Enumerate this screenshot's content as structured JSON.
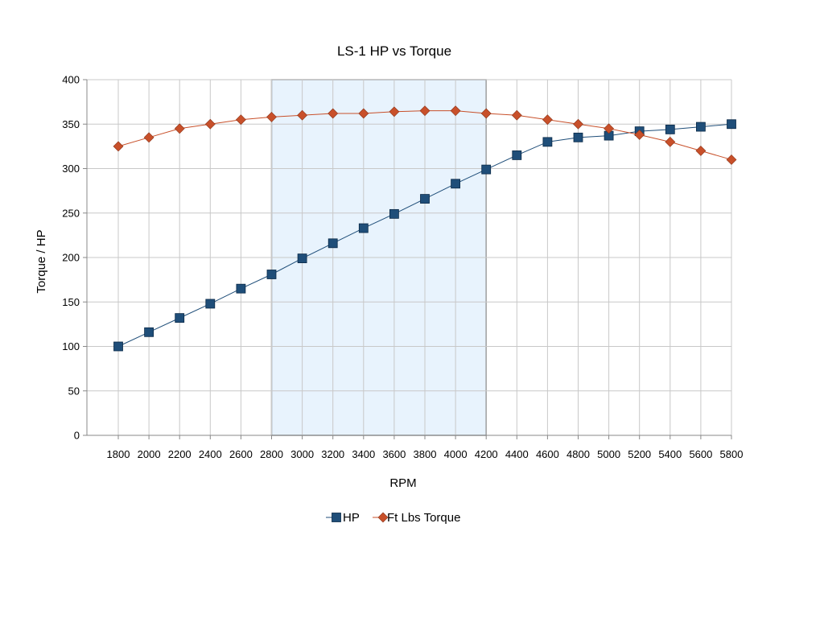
{
  "chart_data": {
    "type": "line",
    "title": "LS-1 HP vs Torque",
    "xlabel": "RPM",
    "ylabel": "Torque / HP",
    "categories": [
      "1800",
      "2000",
      "2200",
      "2400",
      "2600",
      "2800",
      "3000",
      "3200",
      "3400",
      "3600",
      "3800",
      "4000",
      "4200",
      "4400",
      "4600",
      "4800",
      "5000",
      "5200",
      "5400",
      "5600",
      "5800"
    ],
    "ylim": [
      0,
      400
    ],
    "yticks": [
      "0",
      "50",
      "100",
      "150",
      "200",
      "250",
      "300",
      "350",
      "400"
    ],
    "grid": true,
    "legend_position": "bottom",
    "highlight_band": {
      "from": "2800",
      "to": "4200",
      "color": "#e8f3fd"
    },
    "series": [
      {
        "name": "HP",
        "marker": "square",
        "color": "#1f4e79",
        "values": [
          100,
          116,
          132,
          148,
          165,
          181,
          199,
          216,
          233,
          249,
          266,
          283,
          299,
          315,
          330,
          335,
          337,
          342,
          344,
          347,
          350
        ]
      },
      {
        "name": "Ft Lbs Torque",
        "marker": "diamond",
        "color": "#c8502a",
        "values": [
          325,
          335,
          345,
          350,
          355,
          358,
          360,
          362,
          362,
          364,
          365,
          365,
          362,
          360,
          355,
          350,
          345,
          338,
          330,
          320,
          310
        ]
      }
    ]
  }
}
